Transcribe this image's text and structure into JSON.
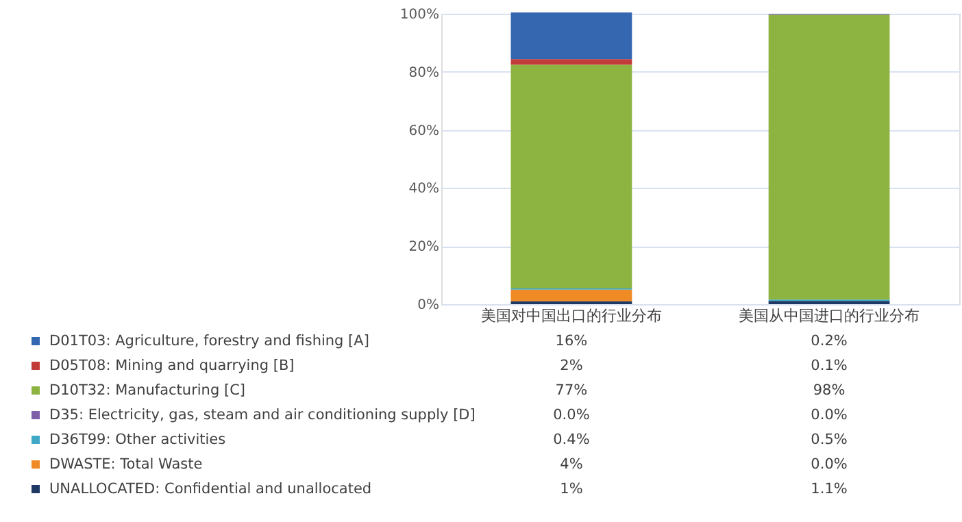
{
  "chart_data": {
    "type": "bar",
    "stacked": true,
    "categories": [
      "美国对中国出口的行业分布",
      "美国从中国进口的行业分布"
    ],
    "ylim": [
      0,
      100
    ],
    "yticks": [
      {
        "value": 0,
        "label": "0%"
      },
      {
        "value": 20,
        "label": "20%"
      },
      {
        "value": 40,
        "label": "40%"
      },
      {
        "value": 60,
        "label": "60%"
      },
      {
        "value": 80,
        "label": "80%"
      },
      {
        "value": 100,
        "label": "100%"
      }
    ],
    "grid": "y",
    "legend": "bottom",
    "series": [
      {
        "name": "UNALLOCATED: Confidential and unallocated",
        "color": "#1f3864",
        "values": [
          1,
          1.1
        ],
        "value_labels": [
          "1%",
          "1.1%"
        ]
      },
      {
        "name": "DWASTE: Total Waste",
        "color": "#f08a24",
        "values": [
          4,
          0.0
        ],
        "value_labels": [
          "4%",
          "0.0%"
        ]
      },
      {
        "name": "D36T99: Other activities",
        "color": "#3ea8c6",
        "values": [
          0.4,
          0.5
        ],
        "value_labels": [
          "0.4%",
          "0.5%"
        ]
      },
      {
        "name": "D35: Electricity, gas, steam and air conditioning supply [D]",
        "color": "#7f5fa8",
        "values": [
          0.0,
          0.0
        ],
        "value_labels": [
          "0.0%",
          "0.0%"
        ]
      },
      {
        "name": "D10T32: Manufacturing [C]",
        "color": "#8db340",
        "values": [
          77,
          98
        ],
        "value_labels": [
          "77%",
          "98%"
        ]
      },
      {
        "name": "D05T08: Mining and quarrying [B]",
        "color": "#c23a3a",
        "values": [
          2,
          0.1
        ],
        "value_labels": [
          "2%",
          "0.1%"
        ]
      },
      {
        "name": "D01T03: Agriculture, forestry and fishing [A]",
        "color": "#3567b0",
        "values": [
          16,
          0.2
        ],
        "value_labels": [
          "16%",
          "0.2%"
        ]
      }
    ]
  }
}
